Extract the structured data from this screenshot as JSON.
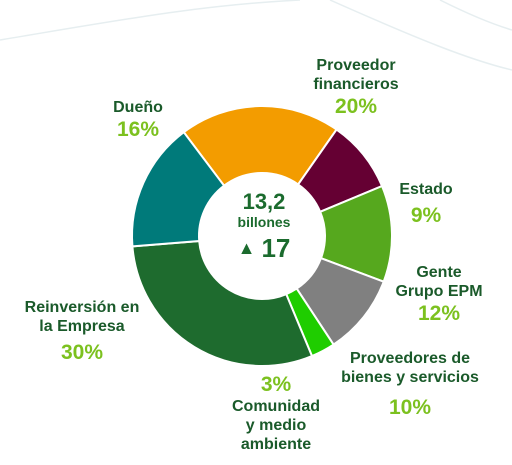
{
  "chart_data": {
    "type": "pie",
    "center": {
      "total": "13,2",
      "unit": "billones",
      "delta_value": "17"
    },
    "slices": [
      {
        "label": "Proveedor financieros",
        "lines": [
          "Proveedor",
          "financieros"
        ],
        "value": 20,
        "pct_text": "20%",
        "color": "#f39c00"
      },
      {
        "label": "Estado",
        "lines": [
          "Estado"
        ],
        "value": 9,
        "pct_text": "9%",
        "color": "#650033"
      },
      {
        "label": "Gente Grupo EPM",
        "lines": [
          "Gente",
          "Grupo EPM"
        ],
        "value": 12,
        "pct_text": "12%",
        "color": "#56a81e"
      },
      {
        "label": "Proveedores de bienes y servicios",
        "lines": [
          "Proveedores de",
          "bienes y servicios"
        ],
        "value": 10,
        "pct_text": "10%",
        "color": "#808080"
      },
      {
        "label": "Comunidad y medio ambiente",
        "lines": [
          "Comunidad",
          "y medio",
          "ambiente"
        ],
        "value": 3,
        "pct_text": "3%",
        "color": "#1fcd00"
      },
      {
        "label": "Reinversión en la Empresa",
        "lines": [
          "Reinversión en",
          "la Empresa"
        ],
        "value": 30,
        "pct_text": "30%",
        "color": "#1e6b2e"
      },
      {
        "label": "Dueño",
        "lines": [
          "Dueño"
        ],
        "value": 16,
        "pct_text": "16%",
        "color": "#007a7a"
      }
    ]
  },
  "colors": {
    "label_text": "#1a5a2a",
    "percent_text": "#7cc11f",
    "center_text": "#1b6b2e"
  }
}
